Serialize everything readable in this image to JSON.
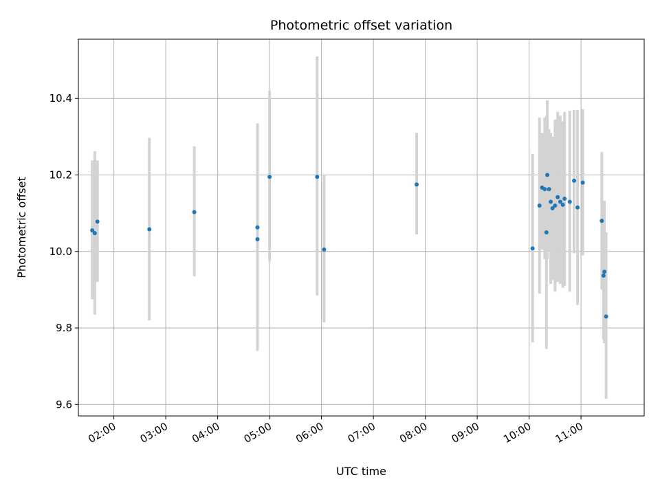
{
  "chart_data": {
    "type": "scatter",
    "title": "Photometric offset variation",
    "xlabel": "UTC time",
    "ylabel": "Photometric offset",
    "x_axis_type": "time",
    "xlim": [
      "01:19",
      "12:13"
    ],
    "ylim": [
      9.57,
      10.555
    ],
    "x_ticks": [
      "02:00",
      "03:00",
      "04:00",
      "05:00",
      "06:00",
      "07:00",
      "08:00",
      "09:00",
      "10:00",
      "11:00"
    ],
    "y_ticks": [
      9.6,
      9.8,
      10.0,
      10.2,
      10.4
    ],
    "y_tick_labels": [
      "9.6",
      "9.8",
      "10.0",
      "10.2",
      "10.4"
    ],
    "grid": true,
    "colors": {
      "marker": "#1f77b4",
      "errorbar": "#d3d3d3",
      "grid": "#b0b0b0",
      "axes": "#000000"
    },
    "points": [
      {
        "x": "01:35",
        "y": 10.055,
        "yerr_low": 9.875,
        "yerr_high": 10.238
      },
      {
        "x": "01:38",
        "y": 10.048,
        "yerr_low": 9.835,
        "yerr_high": 10.262
      },
      {
        "x": "01:41",
        "y": 10.078,
        "yerr_low": 9.92,
        "yerr_high": 10.238
      },
      {
        "x": "02:41",
        "y": 10.058,
        "yerr_low": 9.82,
        "yerr_high": 10.297
      },
      {
        "x": "03:33",
        "y": 10.103,
        "yerr_low": 9.935,
        "yerr_high": 10.275
      },
      {
        "x": "04:46",
        "y": 10.063,
        "yerr_low": 9.74,
        "yerr_high": 10.335
      },
      {
        "x": "04:46",
        "y": 10.032,
        "yerr_low": 9.84,
        "yerr_high": 10.2
      },
      {
        "x": "05:00",
        "y": 10.195,
        "yerr_low": 9.975,
        "yerr_high": 10.42
      },
      {
        "x": "05:55",
        "y": 10.195,
        "yerr_low": 9.885,
        "yerr_high": 10.51
      },
      {
        "x": "06:03",
        "y": 10.005,
        "yerr_low": 9.815,
        "yerr_high": 10.2
      },
      {
        "x": "07:50",
        "y": 10.175,
        "yerr_low": 10.045,
        "yerr_high": 10.31
      },
      {
        "x": "10:04",
        "y": 10.008,
        "yerr_low": 9.762,
        "yerr_high": 10.255
      },
      {
        "x": "10:12",
        "y": 10.12,
        "yerr_low": 9.89,
        "yerr_high": 10.35
      },
      {
        "x": "10:15",
        "y": 10.167,
        "yerr_low": 10.005,
        "yerr_high": 10.31
      },
      {
        "x": "10:18",
        "y": 10.163,
        "yerr_low": 9.98,
        "yerr_high": 10.35
      },
      {
        "x": "10:20",
        "y": 10.05,
        "yerr_low": 9.745,
        "yerr_high": 10.355
      },
      {
        "x": "10:21",
        "y": 10.2,
        "yerr_low": 9.98,
        "yerr_high": 10.395
      },
      {
        "x": "10:23",
        "y": 10.163,
        "yerr_low": 10.0,
        "yerr_high": 10.32
      },
      {
        "x": "10:25",
        "y": 10.13,
        "yerr_low": 9.915,
        "yerr_high": 10.31
      },
      {
        "x": "10:27",
        "y": 10.113,
        "yerr_low": 9.925,
        "yerr_high": 10.3
      },
      {
        "x": "10:30",
        "y": 10.12,
        "yerr_low": 9.895,
        "yerr_high": 10.345
      },
      {
        "x": "10:33",
        "y": 10.142,
        "yerr_low": 9.92,
        "yerr_high": 10.365
      },
      {
        "x": "10:36",
        "y": 10.13,
        "yerr_low": 9.915,
        "yerr_high": 10.355
      },
      {
        "x": "10:39",
        "y": 10.122,
        "yerr_low": 9.905,
        "yerr_high": 10.34
      },
      {
        "x": "10:41",
        "y": 10.138,
        "yerr_low": 9.91,
        "yerr_high": 10.365
      },
      {
        "x": "10:47",
        "y": 10.13,
        "yerr_low": 9.895,
        "yerr_high": 10.368
      },
      {
        "x": "10:52",
        "y": 10.185,
        "yerr_low": 9.995,
        "yerr_high": 10.37
      },
      {
        "x": "10:56",
        "y": 10.115,
        "yerr_low": 9.86,
        "yerr_high": 10.37
      },
      {
        "x": "11:02",
        "y": 10.18,
        "yerr_low": 9.99,
        "yerr_high": 10.372
      },
      {
        "x": "11:24",
        "y": 10.08,
        "yerr_low": 9.9,
        "yerr_high": 10.26
      },
      {
        "x": "11:26",
        "y": 9.937,
        "yerr_low": 9.77,
        "yerr_high": 10.12
      },
      {
        "x": "11:27",
        "y": 9.947,
        "yerr_low": 9.76,
        "yerr_high": 10.133
      },
      {
        "x": "11:29",
        "y": 9.83,
        "yerr_low": 9.615,
        "yerr_high": 10.05
      }
    ]
  }
}
